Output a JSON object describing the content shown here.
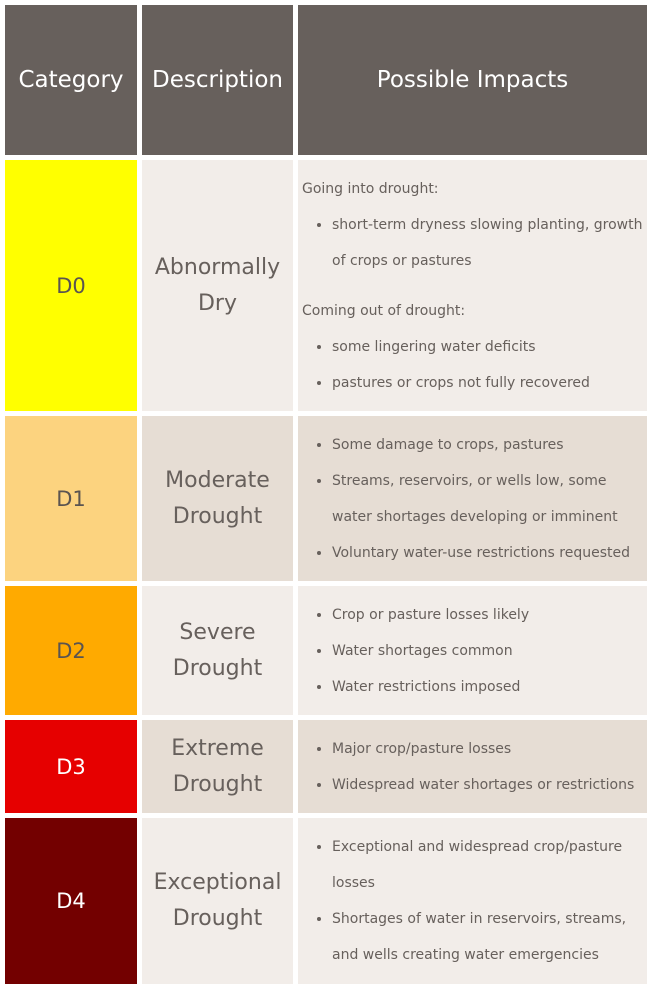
{
  "header": {
    "category": "Category",
    "description": "Description",
    "impacts": "Possible Impacts"
  },
  "rows": [
    {
      "category": "D0",
      "color": "#ffff00",
      "text_color": "#5a5450",
      "description": "Abnormally Dry",
      "going_into_label": "Going into drought:",
      "going_into_items": [
        "short-term dryness slowing planting, growth of crops or pastures"
      ],
      "coming_out_label": "Coming out of drought:",
      "coming_out_items": [
        "some lingering water deficits",
        "pastures or crops not fully recovered"
      ]
    },
    {
      "category": "D1",
      "color": "#fcd37f",
      "text_color": "#5a5450",
      "description": "Moderate Drought",
      "items": [
        "Some damage to crops, pastures",
        "Streams, reservoirs, or wells low, some water shortages developing or imminent",
        "Voluntary water-use restrictions requested"
      ]
    },
    {
      "category": "D2",
      "color": "#ffaa00",
      "text_color": "#5a5450",
      "description": "Severe Drought",
      "items": [
        "Crop or pasture losses likely",
        "Water shortages common",
        "Water restrictions imposed"
      ]
    },
    {
      "category": "D3",
      "color": "#e60000",
      "text_color": "#ffffff",
      "description": "Extreme Drought",
      "items": [
        "Major crop/pasture losses",
        "Widespread water shortages or restrictions"
      ]
    },
    {
      "category": "D4",
      "color": "#730000",
      "text_color": "#ffffff",
      "description": "Exceptional Drought",
      "items": [
        "Exceptional and widespread crop/pasture losses",
        "Shortages of water in reservoirs, streams, and wells creating water emergencies"
      ]
    }
  ]
}
